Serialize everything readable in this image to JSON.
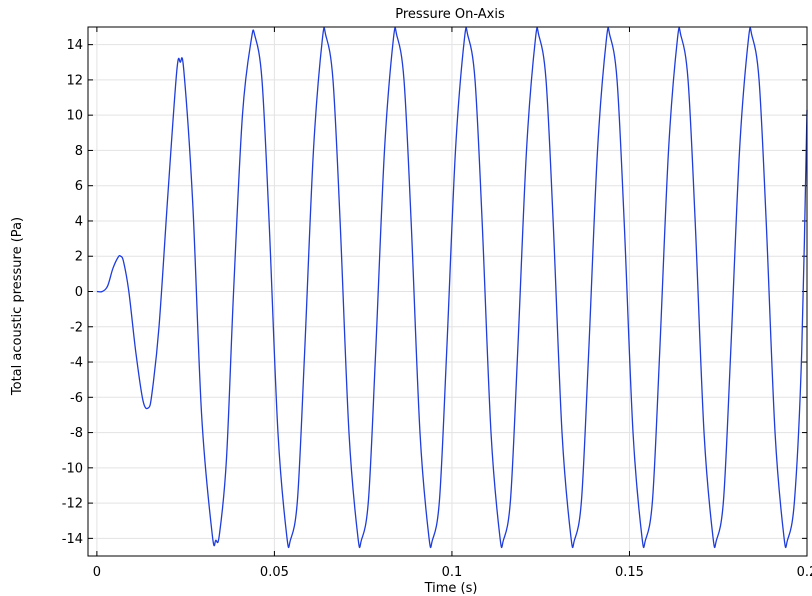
{
  "chart_data": {
    "type": "line",
    "title": "Pressure On-Axis",
    "xlabel": "Time (s)",
    "ylabel": "Total acoustic pressure (Pa)",
    "xlim": [
      -0.0025,
      0.2
    ],
    "ylim": [
      -15,
      15
    ],
    "grid": true,
    "x_ticks": [
      0,
      0.05,
      0.1,
      0.15,
      0.2
    ],
    "x_tick_labels": [
      "0",
      "0.05",
      "0.1",
      "0.15",
      "0.2"
    ],
    "y_ticks": [
      -14,
      -12,
      -10,
      -8,
      -6,
      -4,
      -2,
      0,
      2,
      4,
      6,
      8,
      10,
      12,
      14
    ],
    "y_tick_labels": [
      "-14",
      "-12",
      "-10",
      "-8",
      "-6",
      "-4",
      "-2",
      "0",
      "2",
      "4",
      "6",
      "8",
      "10",
      "12",
      "14"
    ],
    "series": [
      {
        "color": "#1f3ddb",
        "x": [
          0,
          0.0015,
          0.003,
          0.0045,
          0.006,
          0.0067,
          0.0075,
          0.009,
          0.011,
          0.013,
          0.0145,
          0.0155,
          0.0175,
          0.02,
          0.0225,
          0.0235,
          0.0245,
          0.027,
          0.0295,
          0.0325,
          0.0335,
          0.0345,
          0.0365,
          0.0385,
          0.041,
          0.0435,
          0.0445,
          0.0465,
          0.0485,
          0.051,
          0.0535,
          0.0545,
          0.0565,
          0.0585,
          0.061,
          0.0635,
          0.0645,
          0.0665,
          0.0685,
          0.071,
          0.0735,
          0.0745,
          0.0765,
          0.0785,
          0.081,
          0.0835,
          0.0845,
          0.0865,
          0.0885,
          0.091,
          0.0935,
          0.0945,
          0.0965,
          0.0985,
          0.101,
          0.1035,
          0.1045,
          0.1065,
          0.1085,
          0.111,
          0.1135,
          0.1145,
          0.1165,
          0.1185,
          0.121,
          0.1235,
          0.1245,
          0.1265,
          0.1285,
          0.131,
          0.1335,
          0.1345,
          0.1365,
          0.1385,
          0.141,
          0.1435,
          0.1445,
          0.1465,
          0.1485,
          0.151,
          0.1535,
          0.1545,
          0.1565,
          0.1585,
          0.161,
          0.1635,
          0.1645,
          0.1665,
          0.1685,
          0.171,
          0.1735,
          0.1745,
          0.1765,
          0.1785,
          0.181,
          0.1835,
          0.1845,
          0.1865,
          0.1885,
          0.191,
          0.1935,
          0.1945,
          0.1965,
          0.1985,
          0.2
        ],
        "y": [
          0,
          0,
          0.3,
          1.3,
          1.95,
          2.0,
          1.7,
          0,
          -3.5,
          -6.2,
          -6.6,
          -5.8,
          -2.0,
          5.5,
          12.5,
          13.0,
          12.5,
          5.0,
          -7.0,
          -13.8,
          -14.1,
          -13.8,
          -9.5,
          0,
          10.0,
          14.3,
          14.5,
          12.0,
          4.0,
          -8.0,
          -13.9,
          -14.1,
          -11.8,
          -3.5,
          8.0,
          14.3,
          14.5,
          12.0,
          4.0,
          -8.0,
          -13.9,
          -14.1,
          -11.8,
          -3.5,
          8.0,
          14.3,
          14.5,
          12.0,
          4.0,
          -8.0,
          -13.9,
          -14.1,
          -11.8,
          -3.5,
          8.0,
          14.3,
          14.5,
          12.0,
          4.0,
          -8.0,
          -13.9,
          -14.1,
          -11.8,
          -3.5,
          8.0,
          14.3,
          14.5,
          12.0,
          4.0,
          -8.0,
          -13.9,
          -14.1,
          -11.8,
          -3.5,
          8.0,
          14.3,
          14.5,
          12.0,
          4.0,
          -8.0,
          -13.9,
          -14.1,
          -11.8,
          -3.5,
          8.0,
          14.3,
          14.5,
          12.0,
          4.0,
          -8.0,
          -13.9,
          -14.1,
          -11.8,
          -3.5,
          8.0,
          14.3,
          14.5,
          12.0,
          4.0,
          -8.0,
          -13.9,
          -14.1,
          -11.8,
          -3.5,
          10.3
        ]
      }
    ]
  }
}
